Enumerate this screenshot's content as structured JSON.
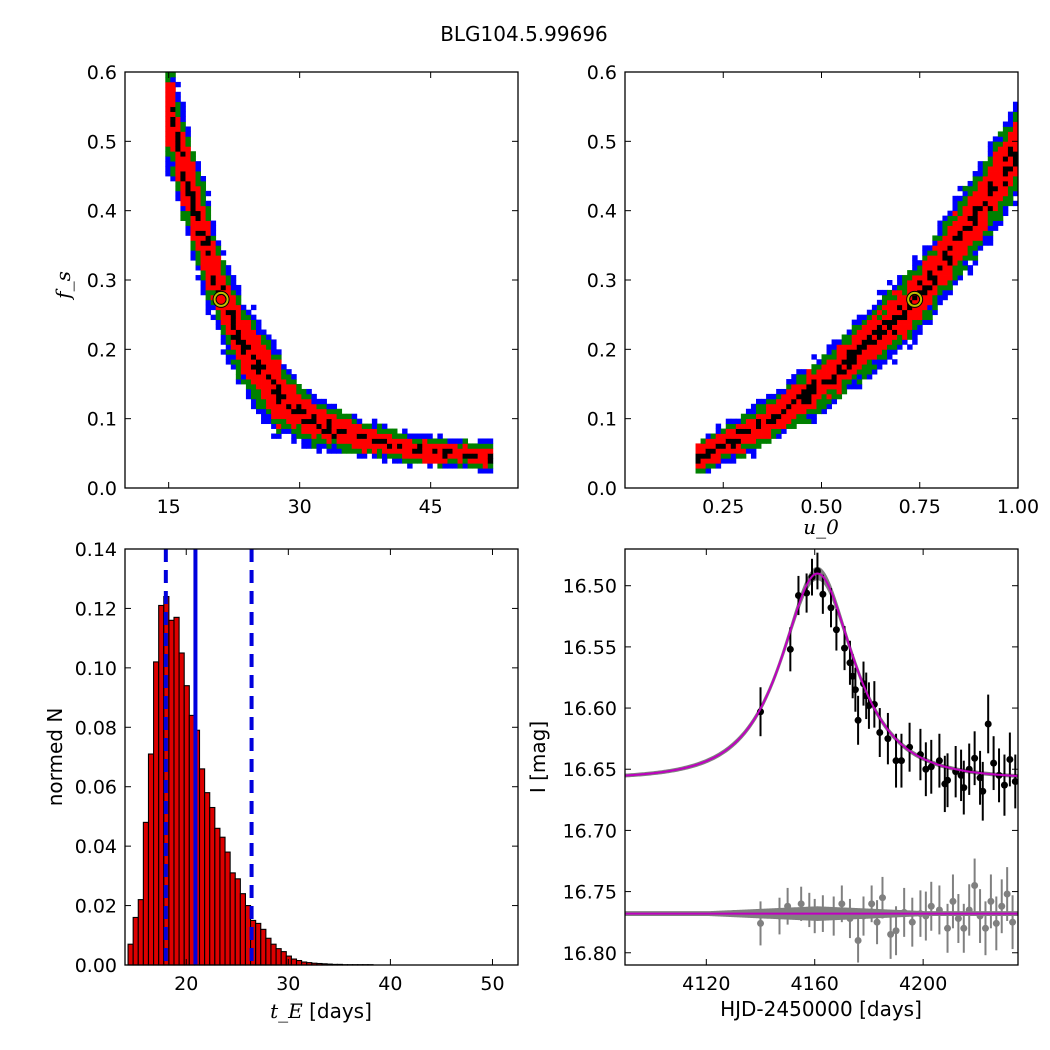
{
  "figure": {
    "title": "BLG104.5.99696"
  },
  "colors": {
    "sigma3": "#0000ff",
    "sigma2": "#008000",
    "sigma1": "#ff0000",
    "best": "#000000",
    "marker_edge": "#bfbf00",
    "hist_fill": "#dd0000",
    "vline": "#0000dd",
    "model": "#bf00bf",
    "samples": "#808080",
    "data": "#000000",
    "resid": "#808080"
  },
  "chart_data": [
    {
      "type": "heatmap",
      "panel": "top-left",
      "xlabel": "",
      "ylabel": "f_s",
      "xlim": [
        10,
        55
      ],
      "ylim": [
        0.0,
        0.6
      ],
      "xticks": [
        15,
        30,
        45
      ],
      "yticks": [
        0.0,
        0.1,
        0.2,
        0.3,
        0.4,
        0.5,
        0.6
      ],
      "xtick_labels": [
        "15",
        "30",
        "45"
      ],
      "ytick_labels": [
        "0.0",
        "0.1",
        "0.2",
        "0.3",
        "0.4",
        "0.5",
        "0.6"
      ],
      "ridge": [
        [
          15.2,
          0.54
        ],
        [
          17.0,
          0.45
        ],
        [
          19.0,
          0.36
        ],
        [
          21.0,
          0.28
        ],
        [
          23.0,
          0.22
        ],
        [
          25.0,
          0.18
        ],
        [
          28.0,
          0.13
        ],
        [
          31.0,
          0.1
        ],
        [
          34.0,
          0.085
        ],
        [
          38.0,
          0.07
        ],
        [
          43.0,
          0.055
        ],
        [
          48.0,
          0.05
        ],
        [
          51.5,
          0.045
        ]
      ],
      "best_fit": {
        "x": 21.0,
        "y": 0.272
      },
      "levels": [
        "3-sigma",
        "2-sigma",
        "1-sigma",
        "best"
      ]
    },
    {
      "type": "heatmap",
      "panel": "top-right",
      "xlabel": "u_0",
      "ylabel": "",
      "xlim": [
        0.0,
        1.0
      ],
      "ylim": [
        0.0,
        0.6
      ],
      "xticks": [
        0.25,
        0.5,
        0.75,
        1.0
      ],
      "yticks": [
        0.0,
        0.1,
        0.2,
        0.3,
        0.4,
        0.5,
        0.6
      ],
      "xtick_labels": [
        "0.25",
        "0.50",
        "0.75",
        "1.00"
      ],
      "ytick_labels": [
        "0.0",
        "0.1",
        "0.2",
        "0.3",
        "0.4",
        "0.5",
        "0.6"
      ],
      "ridge": [
        [
          0.19,
          0.045
        ],
        [
          0.3,
          0.075
        ],
        [
          0.4,
          0.11
        ],
        [
          0.5,
          0.15
        ],
        [
          0.6,
          0.2
        ],
        [
          0.7,
          0.25
        ],
        [
          0.75,
          0.28
        ],
        [
          0.8,
          0.32
        ],
        [
          0.9,
          0.4
        ],
        [
          1.0,
          0.49
        ]
      ],
      "best_fit": {
        "x": 0.737,
        "y": 0.272
      },
      "levels": [
        "3-sigma",
        "2-sigma",
        "1-sigma",
        "best"
      ]
    },
    {
      "type": "bar",
      "panel": "bottom-left",
      "xlabel": "t_E",
      "xlabel_suffix": " [days]",
      "ylabel": "normed N",
      "xlim": [
        14,
        52.5
      ],
      "ylim": [
        0.0,
        0.14
      ],
      "xticks": [
        20,
        30,
        40,
        50
      ],
      "yticks": [
        0.0,
        0.02,
        0.04,
        0.06,
        0.08,
        0.1,
        0.12,
        0.14
      ],
      "xtick_labels": [
        "20",
        "30",
        "40",
        "50"
      ],
      "ytick_labels": [
        "0.00",
        "0.02",
        "0.04",
        "0.06",
        "0.08",
        "0.10",
        "0.12",
        "0.14"
      ],
      "bin_start": 14.3,
      "bin_width": 0.5,
      "values": [
        0.007,
        0.016,
        0.022,
        0.048,
        0.071,
        0.102,
        0.121,
        0.124,
        0.116,
        0.117,
        0.105,
        0.094,
        0.084,
        0.079,
        0.066,
        0.058,
        0.053,
        0.046,
        0.043,
        0.038,
        0.031,
        0.029,
        0.024,
        0.02,
        0.015,
        0.014,
        0.012,
        0.009,
        0.007,
        0.0055,
        0.0045,
        0.003,
        0.002,
        0.0015,
        0.001,
        0.0008,
        0.0006,
        0.0005,
        0.0004,
        0.0003,
        0.0002,
        0.0002,
        0.0001,
        0.0001,
        0.0001,
        0.0001,
        0.0001,
        0.0001
      ],
      "vlines": [
        {
          "x": 18.0,
          "style": "dashed"
        },
        {
          "x": 20.9,
          "style": "solid"
        },
        {
          "x": 26.4,
          "style": "dashed"
        }
      ]
    },
    {
      "type": "scatter",
      "panel": "bottom-right",
      "xlabel": "HJD-2450000 [days]",
      "ylabel": "I [mag]",
      "xlim": [
        4090,
        4235
      ],
      "ylim": [
        16.81,
        16.47
      ],
      "y_inverted": true,
      "xticks": [
        4120,
        4160,
        4200
      ],
      "yticks": [
        16.5,
        16.55,
        16.6,
        16.65,
        16.7,
        16.75,
        16.8
      ],
      "xtick_labels": [
        "4120",
        "4160",
        "4200"
      ],
      "ytick_labels": [
        "16.50",
        "16.55",
        "16.60",
        "16.65",
        "16.70",
        "16.75",
        "16.80"
      ],
      "model": {
        "t0": 4161.0,
        "baseline": 16.658,
        "peak": 16.49,
        "tE": 21.0,
        "u0": 0.74,
        "resid_offset": 16.768
      },
      "data_points": [
        [
          4140,
          16.603,
          0.02
        ],
        [
          4151,
          16.552,
          0.018
        ],
        [
          4154,
          16.508,
          0.016
        ],
        [
          4157,
          16.506,
          0.016
        ],
        [
          4159,
          16.493,
          0.015
        ],
        [
          4161,
          16.488,
          0.015
        ],
        [
          4163,
          16.507,
          0.016
        ],
        [
          4166,
          16.518,
          0.016
        ],
        [
          4168,
          16.536,
          0.017
        ],
        [
          4171,
          16.551,
          0.018
        ],
        [
          4173,
          16.563,
          0.018
        ],
        [
          4174,
          16.574,
          0.018
        ],
        [
          4175,
          16.585,
          0.018
        ],
        [
          4176,
          16.61,
          0.02
        ],
        [
          4178,
          16.58,
          0.018
        ],
        [
          4179,
          16.59,
          0.019
        ],
        [
          4180,
          16.598,
          0.019
        ],
        [
          4182,
          16.597,
          0.019
        ],
        [
          4184,
          16.62,
          0.02
        ],
        [
          4187,
          16.625,
          0.021
        ],
        [
          4190,
          16.643,
          0.022
        ],
        [
          4192,
          16.643,
          0.022
        ],
        [
          4195,
          16.632,
          0.02
        ],
        [
          4199,
          16.638,
          0.021
        ],
        [
          4201,
          16.65,
          0.022
        ],
        [
          4203,
          16.648,
          0.022
        ],
        [
          4206,
          16.643,
          0.022
        ],
        [
          4208,
          16.662,
          0.023
        ],
        [
          4209,
          16.659,
          0.022
        ],
        [
          4212,
          16.652,
          0.021
        ],
        [
          4214,
          16.655,
          0.021
        ],
        [
          4215,
          16.665,
          0.022
        ],
        [
          4217,
          16.65,
          0.021
        ],
        [
          4219,
          16.641,
          0.022
        ],
        [
          4221,
          16.657,
          0.022
        ],
        [
          4222,
          16.668,
          0.024
        ],
        [
          4224,
          16.613,
          0.024
        ],
        [
          4226,
          16.645,
          0.022
        ],
        [
          4228,
          16.655,
          0.022
        ],
        [
          4230,
          16.663,
          0.025
        ],
        [
          4232,
          16.642,
          0.022
        ],
        [
          4234,
          16.66,
          0.022
        ]
      ],
      "residual_points": [
        [
          4140,
          16.776,
          0.018
        ],
        [
          4147,
          16.77,
          0.015
        ],
        [
          4150,
          16.762,
          0.015
        ],
        [
          4155,
          16.76,
          0.014
        ],
        [
          4158,
          16.765,
          0.014
        ],
        [
          4160,
          16.77,
          0.014
        ],
        [
          4163,
          16.768,
          0.015
        ],
        [
          4167,
          16.77,
          0.016
        ],
        [
          4170,
          16.76,
          0.015
        ],
        [
          4173,
          16.772,
          0.016
        ],
        [
          4176,
          16.79,
          0.018
        ],
        [
          4178,
          16.77,
          0.016
        ],
        [
          4181,
          16.76,
          0.015
        ],
        [
          4183,
          16.775,
          0.018
        ],
        [
          4185,
          16.755,
          0.017
        ],
        [
          4188,
          16.785,
          0.02
        ],
        [
          4190,
          16.782,
          0.02
        ],
        [
          4193,
          16.767,
          0.02
        ],
        [
          4196,
          16.775,
          0.02
        ],
        [
          4199,
          16.768,
          0.019
        ],
        [
          4201,
          16.77,
          0.02
        ],
        [
          4203,
          16.762,
          0.02
        ],
        [
          4206,
          16.765,
          0.02
        ],
        [
          4209,
          16.78,
          0.02
        ],
        [
          4211,
          16.758,
          0.022
        ],
        [
          4213,
          16.772,
          0.02
        ],
        [
          4215,
          16.78,
          0.02
        ],
        [
          4217,
          16.765,
          0.021
        ],
        [
          4219,
          16.745,
          0.022
        ],
        [
          4221,
          16.77,
          0.022
        ],
        [
          4223,
          16.78,
          0.022
        ],
        [
          4225,
          16.758,
          0.022
        ],
        [
          4227,
          16.776,
          0.022
        ],
        [
          4229,
          16.762,
          0.022
        ],
        [
          4231,
          16.752,
          0.022
        ],
        [
          4233,
          16.775,
          0.022
        ]
      ]
    }
  ]
}
